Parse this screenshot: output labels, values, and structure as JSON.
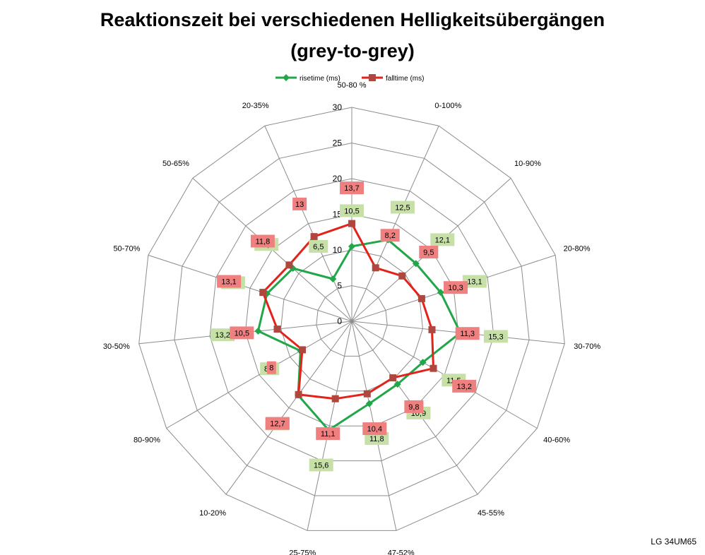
{
  "chart_data": {
    "type": "radar",
    "title": "Reaktionszeit bei verschiedenen Helligkeitsübergängen",
    "subtitle": "(grey-to-grey)",
    "categories": [
      "50-80 %",
      "0-100%",
      "10-90%",
      "20-80%",
      "30-70%",
      "40-60%",
      "45-55%",
      "47-52%",
      "25-75%",
      "10-20%",
      "80-90%",
      "30-50%",
      "50-70%",
      "50-65%",
      "20-35%"
    ],
    "series": [
      {
        "name": "risetime (ms)",
        "color": "#22a64a",
        "label_bg": "#c6e0a8",
        "values": [
          10.5,
          12.5,
          12.1,
          13.1,
          15.3,
          11.5,
          10.9,
          11.8,
          15.6,
          12.8,
          8.3,
          13.2,
          12.5,
          11.1,
          6.5
        ],
        "labels": [
          "10,5",
          "12,5",
          "12,1",
          "13,1",
          "15,3",
          "11,5",
          "10,9",
          "11,8",
          "15,6",
          "12,8",
          "8,3",
          "13,2",
          "12,5",
          "11,1",
          "6,5"
        ]
      },
      {
        "name": "falltime (ms)",
        "color": "#e32219",
        "label_bg": "#f08080",
        "values": [
          13.7,
          8.2,
          9.5,
          10.3,
          11.3,
          13.2,
          9.8,
          10.4,
          11.1,
          12.7,
          8.0,
          10.5,
          13.1,
          11.8,
          13.0
        ],
        "labels": [
          "13,7",
          "8,2",
          "9,5",
          "10,3",
          "11,3",
          "13,2",
          "9,8",
          "10,4",
          "11,1",
          "12,7",
          "8",
          "10,5",
          "13,1",
          "11,8",
          "13"
        ]
      }
    ],
    "rlim": [
      0,
      30
    ],
    "ticks": [
      0,
      5,
      10,
      15,
      20,
      25,
      30
    ],
    "tick_labels": [
      "0",
      "5",
      "10",
      "15",
      "20",
      "25",
      "30"
    ],
    "grid": true,
    "legend_position": "top"
  },
  "watermark": "LG 34UM65"
}
